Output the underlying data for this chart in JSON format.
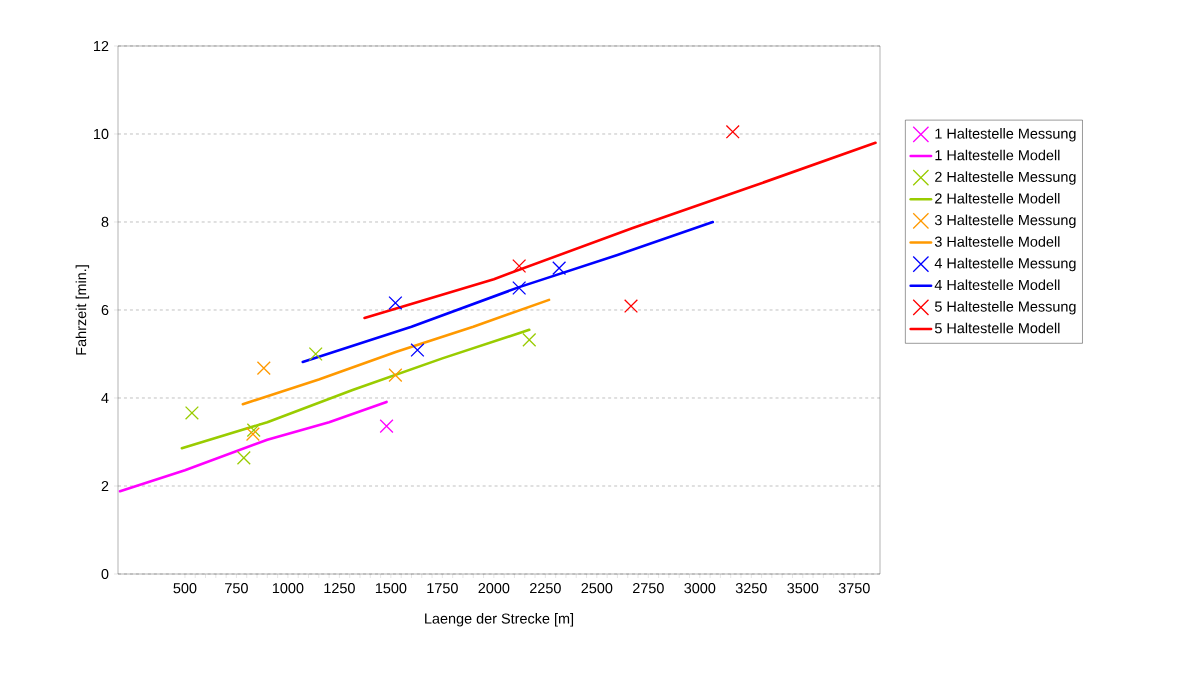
{
  "chart_data": {
    "type": "line",
    "xlabel": "Laenge der Strecke [m]",
    "ylabel": "Fahrzeit [min.]",
    "xlim": [
      175,
      3875
    ],
    "ylim": [
      0,
      12
    ],
    "xticks": [
      500,
      750,
      1000,
      1250,
      1500,
      1750,
      2000,
      2250,
      2500,
      2750,
      3000,
      3250,
      3500,
      3750
    ],
    "yticks": [
      0,
      2,
      4,
      6,
      8,
      10,
      12
    ],
    "grid": "y",
    "legend": "right",
    "series": [
      {
        "name": "1 Haltestelle Messung",
        "type": "scatter",
        "marker": "cross",
        "color": "#ff00ff",
        "x": [
          1479
        ],
        "values": [
          3.36
        ]
      },
      {
        "name": "1 Haltestelle Modell",
        "marker": "none",
        "line_style": "solid",
        "color": "#ff00ff",
        "x": [
          185,
          500,
          900,
          1200,
          1479
        ],
        "values": [
          1.88,
          2.36,
          3.05,
          3.45,
          3.91
        ]
      },
      {
        "name": "2 Haltestelle Messung",
        "type": "scatter",
        "marker": "cross",
        "color": "#99cc00",
        "x": [
          534,
          786,
          834,
          1135,
          2172
        ],
        "values": [
          3.66,
          2.64,
          3.27,
          5.0,
          5.32
        ]
      },
      {
        "name": "2 Haltestelle Modell",
        "marker": "none",
        "line_style": "solid",
        "color": "#99cc00",
        "x": [
          485,
          900,
          1314,
          1750,
          2172
        ],
        "values": [
          2.86,
          3.45,
          4.18,
          4.9,
          5.55
        ]
      },
      {
        "name": "3 Haltestelle Messung",
        "type": "scatter",
        "marker": "cross",
        "color": "#ff9900",
        "x": [
          883,
          830,
          1522
        ],
        "values": [
          4.68,
          3.18,
          4.52
        ]
      },
      {
        "name": "3 Haltestelle Modell",
        "marker": "none",
        "line_style": "solid",
        "color": "#ff9900",
        "x": [
          781,
          1150,
          1527,
          1900,
          2268
        ],
        "values": [
          3.86,
          4.42,
          5.05,
          5.62,
          6.23
        ]
      },
      {
        "name": "4 Haltestelle Messung",
        "type": "scatter",
        "marker": "cross",
        "color": "#0000ff",
        "x": [
          1522,
          1629,
          2123,
          2317
        ],
        "values": [
          6.16,
          5.09,
          6.5,
          6.95
        ]
      },
      {
        "name": "4 Haltestelle Modell",
        "marker": "none",
        "line_style": "solid",
        "color": "#0000ff",
        "x": [
          1072,
          1600,
          2123,
          2600,
          3063
        ],
        "values": [
          4.82,
          5.62,
          6.52,
          7.25,
          8.0
        ]
      },
      {
        "name": "5 Haltestelle Messung",
        "type": "scatter",
        "marker": "cross",
        "color": "#ff0000",
        "x": [
          2123,
          2666,
          3160
        ],
        "values": [
          7.0,
          6.09,
          10.05
        ]
      },
      {
        "name": "5 Haltestelle Modell",
        "marker": "none",
        "line_style": "solid",
        "color": "#ff0000",
        "x": [
          1372,
          2000,
          2671,
          3250,
          3853
        ],
        "values": [
          5.82,
          6.7,
          7.86,
          8.8,
          9.8
        ]
      }
    ]
  }
}
